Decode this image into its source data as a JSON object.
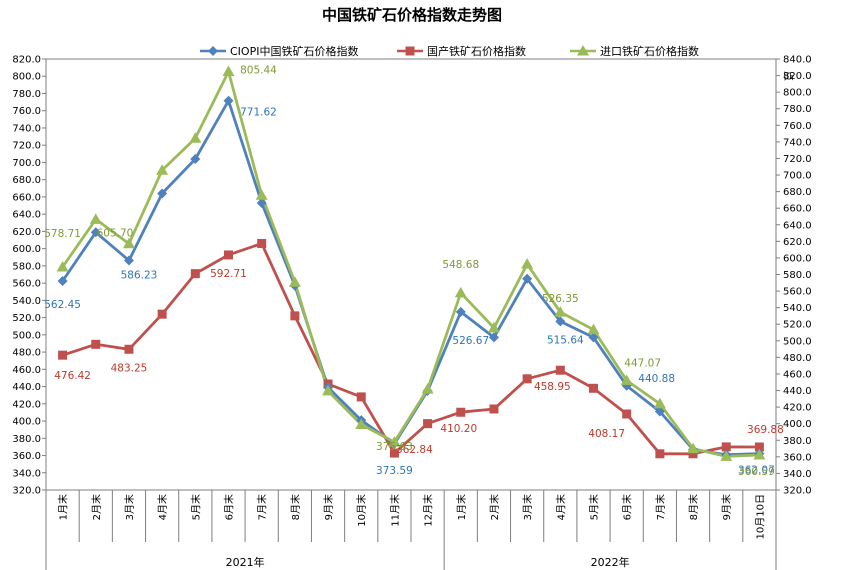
{
  "chart_data": {
    "type": "line",
    "title": "中国铁矿石价格指数走势图",
    "right_axis_unit": "点",
    "categories": [
      "1月末",
      "2月末",
      "3月末",
      "4月末",
      "5月末",
      "6月末",
      "7月末",
      "8月末",
      "9月末",
      "10月末",
      "11月末",
      "12月末",
      "1月末",
      "2月末",
      "3月末",
      "4月末",
      "5月末",
      "6月末",
      "7月末",
      "8月末",
      "9月末",
      "10月10日"
    ],
    "category_groups": [
      {
        "label": "2021年",
        "start": 0,
        "end": 11
      },
      {
        "label": "2022年",
        "start": 12,
        "end": 21
      }
    ],
    "ylim_left": [
      320,
      820
    ],
    "ylim_right": [
      320,
      840
    ],
    "ytick_step": 20,
    "legend_position": "top",
    "series": [
      {
        "name": "CIOPI中国铁矿石价格指数",
        "color": "#4F81BD",
        "marker": "diamond",
        "values": [
          562.45,
          619,
          586.23,
          664,
          704,
          771.62,
          653,
          557,
          439,
          401,
          373.59,
          435,
          526.67,
          497,
          565,
          515.64,
          497,
          440.88,
          411,
          367,
          361,
          362.07
        ]
      },
      {
        "name": "国产铁矿石价格指数",
        "color": "#C0504D",
        "marker": "square",
        "values": [
          476.42,
          489,
          483.25,
          524,
          571,
          592.71,
          606,
          522,
          443,
          428,
          362.84,
          397,
          410.2,
          414,
          449,
          458.95,
          438,
          408.17,
          362,
          362,
          370,
          369.88
        ]
      },
      {
        "name": "进口铁矿石价格指数",
        "color": "#9BBB59",
        "marker": "triangle",
        "values": [
          578.71,
          634,
          605.7,
          691,
          728,
          805.44,
          662,
          561,
          435,
          396,
          375.63,
          437,
          548.68,
          508,
          582,
          526.35,
          506,
          447.07,
          420,
          368,
          359,
          360.59
        ]
      }
    ],
    "data_labels": [
      {
        "series": 0,
        "index": 0,
        "text": "562.45"
      },
      {
        "series": 0,
        "index": 2,
        "text": "586.23"
      },
      {
        "series": 0,
        "index": 5,
        "text": "771.62"
      },
      {
        "series": 0,
        "index": 10,
        "text": "373.59"
      },
      {
        "series": 0,
        "index": 12,
        "text": "526.67"
      },
      {
        "series": 0,
        "index": 15,
        "text": "515.64"
      },
      {
        "series": 0,
        "index": 17,
        "text": "440.88"
      },
      {
        "series": 0,
        "index": 21,
        "text": "362.07"
      },
      {
        "series": 1,
        "index": 0,
        "text": "476.42"
      },
      {
        "series": 1,
        "index": 2,
        "text": "483.25"
      },
      {
        "series": 1,
        "index": 5,
        "text": "592.71"
      },
      {
        "series": 1,
        "index": 10,
        "text": "362.84"
      },
      {
        "series": 1,
        "index": 12,
        "text": "410.20"
      },
      {
        "series": 1,
        "index": 15,
        "text": "458.95"
      },
      {
        "series": 1,
        "index": 17,
        "text": "408.17"
      },
      {
        "series": 1,
        "index": 21,
        "text": "369.88"
      },
      {
        "series": 2,
        "index": 0,
        "text": "578.71"
      },
      {
        "series": 2,
        "index": 2,
        "text": "605.70"
      },
      {
        "series": 2,
        "index": 5,
        "text": "805.44"
      },
      {
        "series": 2,
        "index": 10,
        "text": "375.63"
      },
      {
        "series": 2,
        "index": 12,
        "text": "548.68"
      },
      {
        "series": 2,
        "index": 15,
        "text": "526.35"
      },
      {
        "series": 2,
        "index": 17,
        "text": "447.07"
      },
      {
        "series": 2,
        "index": 21,
        "text": "360.59"
      }
    ]
  }
}
